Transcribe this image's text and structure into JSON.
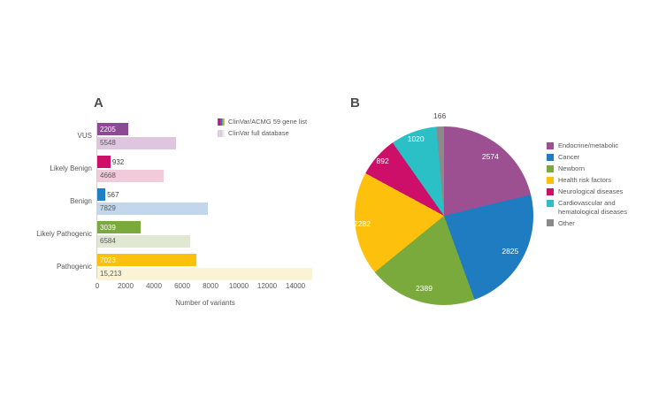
{
  "figure": {
    "background": "#ffffff",
    "panel_a": {
      "letter": "A"
    },
    "panel_b": {
      "letter": "B"
    }
  },
  "chart_data": [
    {
      "type": "bar",
      "panel": "A",
      "orientation": "horizontal",
      "categories": [
        "VUS",
        "Likely Benign",
        "Benign",
        "Likely Pathogenic",
        "Pathogenic"
      ],
      "series": [
        {
          "name": "ClinVar/ACMG 59 gene list",
          "values": [
            2205,
            932,
            567,
            3039,
            7023
          ],
          "labels": [
            "2205",
            "932",
            "567",
            "3039",
            "7023"
          ],
          "colors": [
            "#8c4a94",
            "#ce0f69",
            "#1f7fc4",
            "#7aa93c",
            "#fdc10d"
          ]
        },
        {
          "name": "ClinVar full database",
          "values": [
            5548,
            4668,
            7829,
            6584,
            15213
          ],
          "labels": [
            "5548",
            "4668",
            "7829",
            "6584",
            "15,213"
          ],
          "colors": [
            "#ddc6de",
            "#f2cbdb",
            "#c3d7ec",
            "#e0e7d3",
            "#faf3d4"
          ]
        }
      ],
      "xlabel": "Number of variants",
      "x_ticks": [
        0,
        2000,
        4000,
        6000,
        8000,
        10000,
        12000,
        14000
      ],
      "xlim": [
        0,
        15300
      ],
      "grid": false,
      "legend_position": "top-right",
      "legend": [
        {
          "label": "ClinVar/ACMG 59 gene list",
          "swatch": "striped-dark"
        },
        {
          "label": "ClinVar full database",
          "swatch": "striped-light"
        }
      ]
    },
    {
      "type": "pie",
      "panel": "B",
      "start_angle_deg": 0,
      "direction": "clockwise",
      "total": 12148,
      "slices": [
        {
          "label": "Endocrine/metabolic",
          "value": 2574,
          "color": "#9c4f91"
        },
        {
          "label": "Cancer",
          "value": 2825,
          "color": "#1f7cc0"
        },
        {
          "label": "Newborn",
          "value": 2389,
          "color": "#7aa93c"
        },
        {
          "label": "Health risk factors",
          "value": 2282,
          "color": "#fdc10d"
        },
        {
          "label": "Neurological diseases",
          "value": 892,
          "color": "#ce0f69"
        },
        {
          "label": "Cardiovascular and hematological diseases",
          "value": 1020,
          "color": "#2bbfc6"
        },
        {
          "label": "Other",
          "value": 166,
          "color": "#8a8a8a"
        }
      ],
      "legend_position": "right"
    }
  ]
}
